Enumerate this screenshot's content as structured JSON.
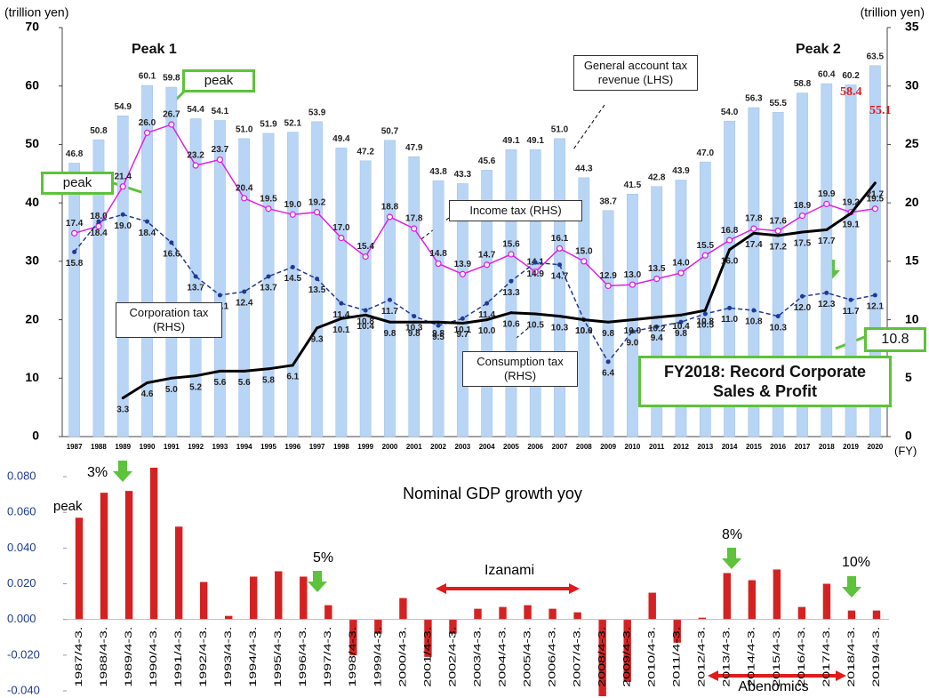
{
  "chart_data": [
    {
      "type": "bar",
      "y_label": "(trillion yen)",
      "y2_label": "(trillion yen)",
      "x_label": "(FY)",
      "categories": [
        "1987",
        "1988",
        "1989",
        "1990",
        "1991",
        "1992",
        "1993",
        "1994",
        "1995",
        "1996",
        "1997",
        "1998",
        "1999",
        "2000",
        "2001",
        "2002",
        "2003",
        "2004",
        "2005",
        "2006",
        "2007",
        "2008",
        "2009",
        "2010",
        "2011",
        "2012",
        "2013",
        "2014",
        "2015",
        "2016",
        "2017",
        "2018",
        "2019",
        "2020"
      ],
      "ylim": [
        0,
        70
      ],
      "yticks": [
        0,
        10,
        20,
        30,
        40,
        50,
        60,
        70
      ],
      "y2lim": [
        0,
        35
      ],
      "y2ticks": [
        0,
        5,
        10,
        15,
        20,
        25,
        30,
        35
      ],
      "series": [
        {
          "name": "General account tax revenue (LHS)",
          "type": "bar",
          "color": "#b9d5f5",
          "values": [
            46.8,
            50.8,
            54.9,
            60.1,
            59.8,
            54.4,
            54.1,
            51.0,
            51.9,
            52.1,
            53.9,
            49.4,
            47.2,
            50.7,
            47.9,
            43.8,
            43.3,
            45.6,
            49.1,
            49.1,
            51.0,
            44.3,
            38.7,
            41.5,
            42.8,
            43.9,
            47.0,
            54.0,
            56.3,
            55.5,
            58.8,
            60.4,
            60.2,
            63.5
          ],
          "value_labels": [
            "46.8",
            "50.8",
            "54.9",
            "60.1",
            "59.8",
            "54.4",
            "54.1",
            "51.0",
            "51.9",
            "52.1",
            "53.9",
            "49.4",
            "47.2",
            "50.7",
            "47.9",
            "43.8",
            "43.3",
            "45.6",
            "49.1",
            "49.1",
            "51.0",
            "44.3",
            "38.7",
            "41.5",
            "42.8",
            "43.9",
            "47.0",
            "54.0",
            "56.3",
            "55.5",
            "58.8",
            "60.4",
            "60.2",
            "63.5"
          ]
        },
        {
          "name": "Income tax (RHS)",
          "type": "line",
          "axis": "y2",
          "color": "#e020e0",
          "values": [
            17.4,
            18.0,
            21.4,
            26.0,
            26.7,
            23.2,
            23.7,
            20.4,
            19.5,
            19.0,
            19.2,
            17.0,
            15.4,
            18.8,
            17.8,
            14.8,
            13.9,
            14.7,
            15.6,
            14.1,
            16.1,
            15.0,
            12.9,
            13.0,
            13.5,
            14.0,
            15.5,
            16.8,
            17.8,
            17.6,
            18.9,
            19.9,
            19.2,
            19.5
          ],
          "value_labels": [
            "17.4",
            "18.0",
            "21.4",
            "26.0",
            "26.7",
            "23.2",
            "23.7",
            "20.4",
            "19.5",
            "19.0",
            "19.2",
            "17.0",
            "15.4",
            "18.8",
            "17.8",
            "14.8",
            "13.9",
            "14.7",
            "15.6",
            "14.1",
            "16.1",
            "15.0",
            "12.9",
            "13.0",
            "13.5",
            "14.0",
            "15.5",
            "16.8",
            "17.8",
            "17.6",
            "18.9",
            "19.9",
            "19.2",
            "19.5"
          ]
        },
        {
          "name": "Corporation tax (RHS)",
          "type": "line",
          "axis": "y2",
          "color": "#1f3a93",
          "values": [
            15.8,
            18.4,
            19.0,
            18.4,
            16.6,
            13.7,
            12.1,
            12.4,
            13.7,
            14.5,
            13.5,
            11.4,
            10.8,
            11.7,
            10.3,
            9.5,
            10.1,
            11.4,
            13.3,
            14.9,
            14.7,
            10.0,
            6.4,
            9.0,
            9.4,
            9.8,
            10.5,
            11.0,
            10.8,
            10.3,
            12.0,
            12.3,
            11.7,
            12.1
          ],
          "value_labels": [
            "15.8",
            "18.4",
            "19.0",
            "18.4",
            "16.6",
            "13.7",
            "12.1",
            "12.4",
            "13.7",
            "14.5",
            "13.5",
            "11.4",
            "10.8",
            "11.7",
            "10.3",
            "9.5",
            "10.1",
            "11.4",
            "13.3",
            "14.9",
            "14.7",
            "10.0",
            "6.4",
            "9.0",
            "9.4",
            "9.8",
            "10.5",
            "11.0",
            "10.8",
            "10.3",
            "12.0",
            "12.3",
            "11.7",
            "12.1"
          ]
        },
        {
          "name": "Consumption tax (RHS)",
          "type": "line",
          "axis": "y2",
          "color": "#000000",
          "values": [
            null,
            null,
            3.3,
            4.6,
            5.0,
            5.2,
            5.6,
            5.6,
            5.8,
            6.1,
            9.3,
            10.1,
            10.4,
            9.8,
            9.8,
            9.8,
            9.7,
            10.0,
            10.6,
            10.5,
            10.3,
            10.0,
            9.8,
            10.0,
            10.2,
            10.4,
            10.8,
            16.0,
            17.4,
            17.2,
            17.5,
            17.7,
            19.1,
            21.7
          ],
          "value_labels": [
            null,
            null,
            "3.3",
            "4.6",
            "5.0",
            "5.2",
            "5.6",
            "5.6",
            "5.8",
            "6.1",
            "9.3",
            "10.1",
            "10.4",
            "9.8",
            "9.8",
            "9.8",
            "9.7",
            "10.0",
            "10.6",
            "10.5",
            "10.3",
            "10.0",
            "9.8",
            "10.0",
            "10.2",
            "10.4",
            "10.8",
            "16.0",
            "17.4",
            "17.2",
            "17.5",
            "17.7",
            "19.1",
            "21.7"
          ]
        }
      ],
      "annotations": [
        "Peak 1",
        "Peak 2",
        "peak",
        "peak",
        "FY2018: Record Corporate Sales & Profit",
        "10.8",
        "58.4",
        "55.1"
      ]
    },
    {
      "type": "bar",
      "title": "Nominal GDP growth yoy",
      "color": "#d42222",
      "categories": [
        "1987/4-3.",
        "1988/4-3.",
        "1989/4-3.",
        "1990/4-3.",
        "1991/4-3.",
        "1992/4-3.",
        "1993/4-3.",
        "1994/4-3.",
        "1995/4-3.",
        "1996/4-3.",
        "1997/4-3.",
        "1998/4-3.",
        "1999/4-3.",
        "2000/4-3.",
        "2001/4-3.",
        "2002/4-3.",
        "2003/4-3.",
        "2004/4-3.",
        "2005/4-3.",
        "2006/4-3.",
        "2007/4-3.",
        "2008/4-3.",
        "2009/4-3.",
        "2010/4-3.",
        "2011/4-3.",
        "2012/4-3.",
        "2013/4-3.",
        "2014/4-3.",
        "2015/4-3.",
        "2016/4-3.",
        "2017/4-3.",
        "2018/4-3.",
        "2019/4-3."
      ],
      "values": [
        0.057,
        0.071,
        0.072,
        0.085,
        0.052,
        0.021,
        0.002,
        0.024,
        0.027,
        0.024,
        0.008,
        -0.02,
        -0.008,
        0.012,
        -0.021,
        -0.008,
        0.006,
        0.007,
        0.008,
        0.006,
        0.004,
        -0.046,
        -0.035,
        0.015,
        -0.013,
        0.001,
        0.026,
        0.022,
        0.028,
        0.007,
        0.02,
        0.005,
        0.005
      ],
      "ylim": [
        -0.042,
        0.088
      ],
      "yticks": [
        {
          "value": -0.04,
          "label": "-0.040"
        },
        {
          "value": -0.02,
          "label": "-0.020"
        },
        {
          "value": 0,
          "label": "0.000"
        },
        {
          "value": 0.02,
          "label": "0.020"
        },
        {
          "value": 0.04,
          "label": "0.040"
        },
        {
          "value": 0.06,
          "label": "0.060"
        },
        {
          "value": 0.08,
          "label": "0.080"
        }
      ],
      "annotations": [
        "3%",
        "5%",
        "8%",
        "10%",
        "peak",
        "Izanami",
        "Abenomics"
      ]
    }
  ]
}
